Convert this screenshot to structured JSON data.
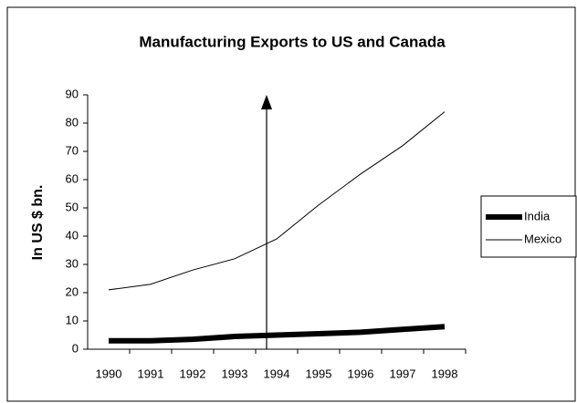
{
  "chart_data": {
    "type": "line",
    "title": "Manufacturing Exports to US and Canada",
    "y_label": "In US $ bn.",
    "categories": [
      "1990",
      "1991",
      "1992",
      "1993",
      "1994",
      "1995",
      "1996",
      "1997",
      "1998"
    ],
    "series": [
      {
        "name": "India",
        "color": "#000000",
        "linewidth": 6,
        "values": [
          3,
          3,
          3.5,
          4.5,
          5,
          5.5,
          6,
          7,
          8
        ]
      },
      {
        "name": "Mexico",
        "color": "#000000",
        "linewidth": 1,
        "values": [
          21,
          23,
          28,
          32,
          39,
          51,
          62,
          72,
          84
        ]
      }
    ],
    "ylim": [
      0,
      90
    ],
    "yticks": [
      0,
      10,
      20,
      30,
      40,
      50,
      60,
      70,
      80,
      90
    ],
    "grid": false,
    "legend": "right"
  }
}
